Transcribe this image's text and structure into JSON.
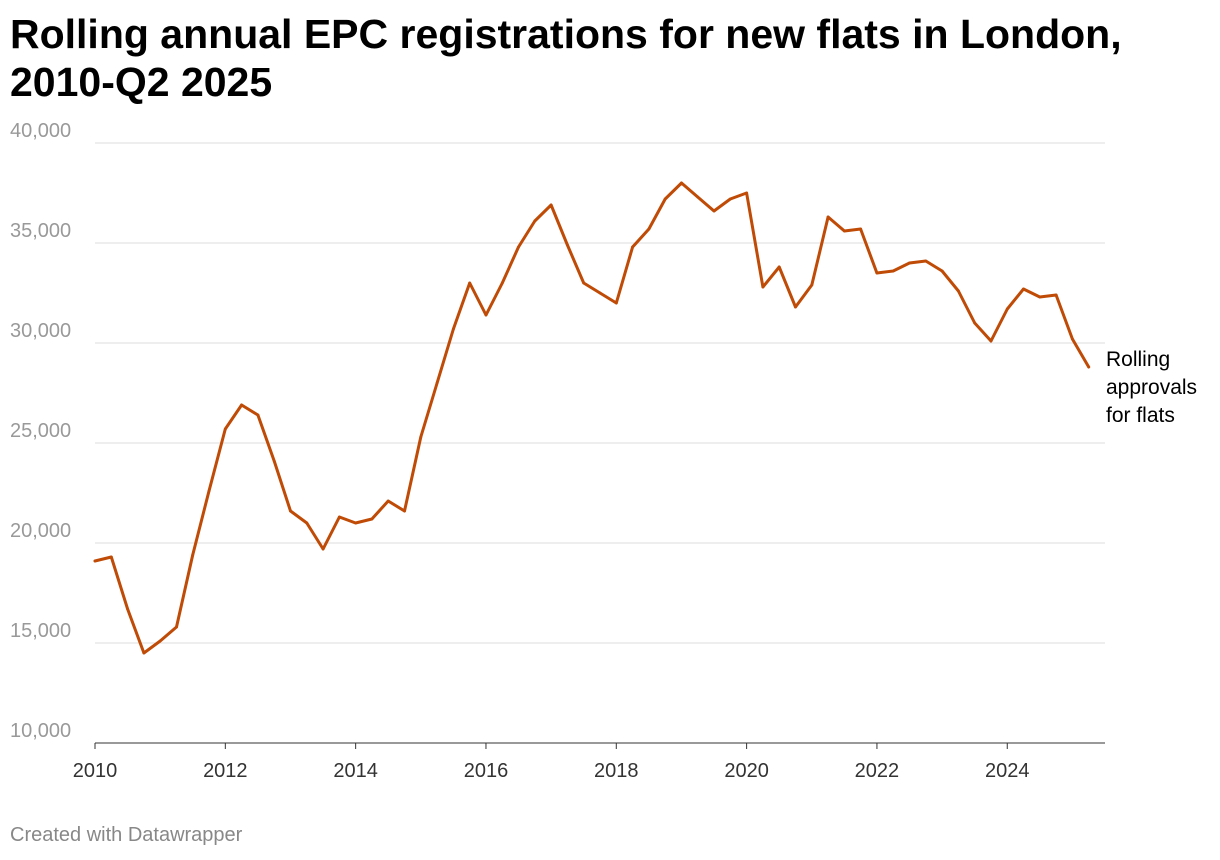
{
  "title": "Rolling annual EPC registrations for new flats in London, 2010-Q2 2025",
  "footer": "Created with Datawrapper",
  "chart_data": {
    "type": "line",
    "title": "Rolling annual EPC registrations for new flats in London, 2010-Q2 2025",
    "xlabel": "",
    "ylabel": "",
    "xlim": [
      2010,
      2025.5
    ],
    "ylim": [
      10000,
      40000
    ],
    "grid": true,
    "x_ticks": [
      2010,
      2012,
      2014,
      2016,
      2018,
      2020,
      2022,
      2024
    ],
    "y_ticks": [
      10000,
      15000,
      20000,
      25000,
      30000,
      35000,
      40000
    ],
    "y_tick_labels": [
      "10,000",
      "15,000",
      "20,000",
      "25,000",
      "30,000",
      "35,000",
      "40,000"
    ],
    "line_color": "#bf4b06",
    "series": [
      {
        "name": "Rolling approvals for flats",
        "label_lines": [
          "Rolling",
          "approvals",
          "for flats"
        ],
        "x": [
          2010.0,
          2010.25,
          2010.5,
          2010.75,
          2011.0,
          2011.25,
          2011.5,
          2011.75,
          2012.0,
          2012.25,
          2012.5,
          2012.75,
          2013.0,
          2013.25,
          2013.5,
          2013.75,
          2014.0,
          2014.25,
          2014.5,
          2014.75,
          2015.0,
          2015.25,
          2015.5,
          2015.75,
          2016.0,
          2016.25,
          2016.5,
          2016.75,
          2017.0,
          2017.25,
          2017.5,
          2017.75,
          2018.0,
          2018.25,
          2018.5,
          2018.75,
          2019.0,
          2019.25,
          2019.5,
          2019.75,
          2020.0,
          2020.25,
          2020.5,
          2020.75,
          2021.0,
          2021.25,
          2021.5,
          2021.75,
          2022.0,
          2022.25,
          2022.5,
          2022.75,
          2023.0,
          2023.25,
          2023.5,
          2023.75,
          2024.0,
          2024.25,
          2024.5,
          2024.75,
          2025.0,
          2025.25
        ],
        "values": [
          19100,
          19300,
          16700,
          14500,
          15100,
          15800,
          19400,
          22600,
          25700,
          26900,
          26400,
          24100,
          21600,
          21000,
          19700,
          21300,
          21000,
          21200,
          22100,
          21600,
          25300,
          28000,
          30700,
          33000,
          31400,
          33000,
          34800,
          36100,
          36900,
          34900,
          33000,
          32500,
          32000,
          34800,
          35700,
          37200,
          38000,
          37300,
          36600,
          37200,
          37500,
          32800,
          33800,
          31800,
          32900,
          36300,
          35600,
          35700,
          33500,
          33600,
          34000,
          34100,
          33600,
          32600,
          31000,
          30100,
          31700,
          32700,
          32300,
          32400,
          30200,
          28800
        ]
      }
    ]
  }
}
